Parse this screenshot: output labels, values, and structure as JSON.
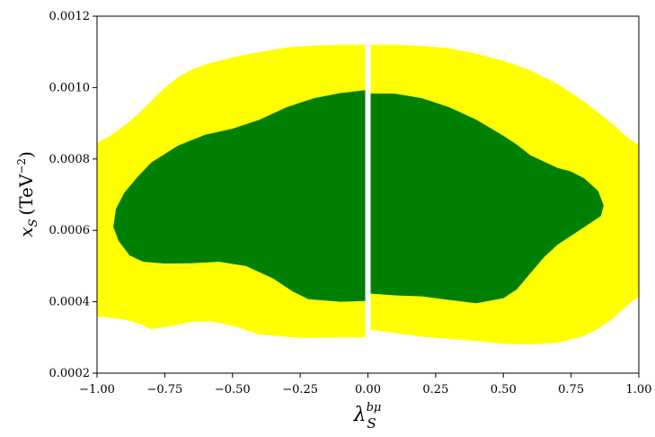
{
  "chart_data": {
    "type": "area",
    "title": "",
    "xlabel": "λ_S^{bμ}",
    "ylabel_var": "x_S",
    "ylabel_unit": "(TeV⁻²)",
    "xlim": [
      -1.0,
      1.0
    ],
    "ylim": [
      0.0002,
      0.0012
    ],
    "x_ticks": [
      "−1.00",
      "−0.75",
      "−0.50",
      "−0.25",
      "0.00",
      "0.25",
      "0.50",
      "0.75",
      "1.00"
    ],
    "y_ticks": [
      "0.0002",
      "0.0004",
      "0.0006",
      "0.0008",
      "0.0010",
      "0.0012"
    ],
    "x_tick_values": [
      -1.0,
      -0.75,
      -0.5,
      -0.25,
      0.0,
      0.25,
      0.5,
      0.75,
      1.0
    ],
    "y_tick_values": [
      0.0002,
      0.0004,
      0.0006,
      0.0008,
      0.001,
      0.0012
    ],
    "grid": false,
    "colors": {
      "outer": "#ffff00",
      "inner": "#008000",
      "gap": "#ffffff"
    },
    "regions": [
      {
        "color_key": "outer",
        "points": [
          [
            -1.0,
            0.000845
          ],
          [
            -0.95,
            0.000865
          ],
          [
            -0.9,
            0.000893
          ],
          [
            -0.85,
            0.000925
          ],
          [
            -0.8,
            0.000962
          ],
          [
            -0.75,
            0.001
          ],
          [
            -0.7,
            0.00103
          ],
          [
            -0.65,
            0.00105
          ],
          [
            -0.6,
            0.001065
          ],
          [
            -0.5,
            0.001085
          ],
          [
            -0.4,
            0.0011
          ],
          [
            -0.3,
            0.001112
          ],
          [
            -0.2,
            0.001118
          ],
          [
            -0.1,
            0.00112
          ],
          [
            -0.01,
            0.00112
          ],
          [
            -0.01,
            0.0003
          ],
          [
            -0.1,
            0.0003
          ],
          [
            -0.25,
            0.000299
          ],
          [
            -0.4,
            0.000308
          ],
          [
            -0.5,
            0.000333
          ],
          [
            -0.58,
            0.000345
          ],
          [
            -0.65,
            0.000344
          ],
          [
            -0.72,
            0.000333
          ],
          [
            -0.8,
            0.000323
          ],
          [
            -0.85,
            0.00034
          ],
          [
            -0.9,
            0.00035
          ],
          [
            -1.0,
            0.00036
          ]
        ]
      },
      {
        "color_key": "outer",
        "points": [
          [
            0.01,
            0.00112
          ],
          [
            0.1,
            0.00112
          ],
          [
            0.2,
            0.001117
          ],
          [
            0.3,
            0.00111
          ],
          [
            0.4,
            0.001095
          ],
          [
            0.5,
            0.001075
          ],
          [
            0.6,
            0.001048
          ],
          [
            0.7,
            0.00101
          ],
          [
            0.8,
            0.00096
          ],
          [
            0.9,
            0.0009
          ],
          [
            0.95,
            0.000865
          ],
          [
            1.0,
            0.000838
          ],
          [
            1.0,
            0.000415
          ],
          [
            0.95,
            0.000385
          ],
          [
            0.9,
            0.00035
          ],
          [
            0.85,
            0.000325
          ],
          [
            0.8,
            0.000305
          ],
          [
            0.7,
            0.000285
          ],
          [
            0.6,
            0.00028
          ],
          [
            0.5,
            0.000282
          ],
          [
            0.4,
            0.00029
          ],
          [
            0.3,
            0.000296
          ],
          [
            0.2,
            0.000302
          ],
          [
            0.1,
            0.000312
          ],
          [
            0.01,
            0.000322
          ]
        ]
      },
      {
        "color_key": "inner",
        "points": [
          [
            -0.01,
            0.000993
          ],
          [
            -0.1,
            0.000985
          ],
          [
            -0.2,
            0.00097
          ],
          [
            -0.3,
            0.000945
          ],
          [
            -0.4,
            0.00091
          ],
          [
            -0.5,
            0.000885
          ],
          [
            -0.6,
            0.000868
          ],
          [
            -0.7,
            0.000838
          ],
          [
            -0.8,
            0.00079
          ],
          [
            -0.85,
            0.00075
          ],
          [
            -0.9,
            0.000705
          ],
          [
            -0.93,
            0.00066
          ],
          [
            -0.94,
            0.00061
          ],
          [
            -0.92,
            0.00057
          ],
          [
            -0.88,
            0.00053
          ],
          [
            -0.83,
            0.000512
          ],
          [
            -0.75,
            0.000507
          ],
          [
            -0.65,
            0.000508
          ],
          [
            -0.55,
            0.000512
          ],
          [
            -0.45,
            0.0005
          ],
          [
            -0.35,
            0.000465
          ],
          [
            -0.28,
            0.00043
          ],
          [
            -0.22,
            0.000407
          ],
          [
            -0.1,
            0.0004
          ],
          [
            -0.01,
            0.000402
          ]
        ]
      },
      {
        "color_key": "inner",
        "points": [
          [
            0.01,
            0.000983
          ],
          [
            0.1,
            0.000983
          ],
          [
            0.2,
            0.00097
          ],
          [
            0.3,
            0.000945
          ],
          [
            0.4,
            0.00091
          ],
          [
            0.5,
            0.000865
          ],
          [
            0.55,
            0.00084
          ],
          [
            0.6,
            0.00081
          ],
          [
            0.7,
            0.000775
          ],
          [
            0.75,
            0.000765
          ],
          [
            0.8,
            0.000745
          ],
          [
            0.85,
            0.00071
          ],
          [
            0.87,
            0.00067
          ],
          [
            0.86,
            0.00064
          ],
          [
            0.8,
            0.00061
          ],
          [
            0.75,
            0.000585
          ],
          [
            0.7,
            0.00056
          ],
          [
            0.65,
            0.000525
          ],
          [
            0.6,
            0.00048
          ],
          [
            0.55,
            0.000435
          ],
          [
            0.5,
            0.00041
          ],
          [
            0.4,
            0.000396
          ],
          [
            0.3,
            0.000405
          ],
          [
            0.2,
            0.000415
          ],
          [
            0.1,
            0.000418
          ],
          [
            0.01,
            0.000423
          ]
        ]
      }
    ]
  }
}
